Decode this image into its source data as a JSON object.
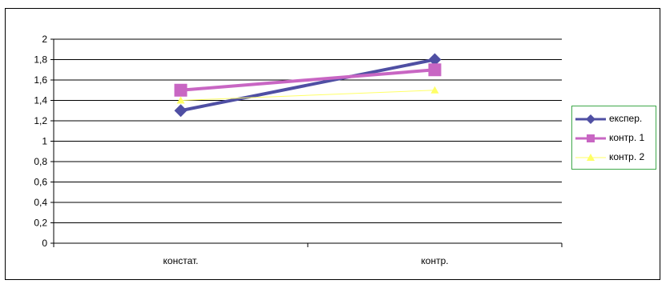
{
  "chart_data": {
    "type": "line",
    "categories": [
      "констат.",
      "контр."
    ],
    "series": [
      {
        "name": "експер.",
        "values": [
          1.3,
          1.8
        ],
        "color": "#4f4fa3",
        "marker": "diamond"
      },
      {
        "name": "контр. 1",
        "values": [
          1.5,
          1.7
        ],
        "color": "#c866c3",
        "marker": "square"
      },
      {
        "name": "контр. 2",
        "values": [
          1.4,
          1.5
        ],
        "color": "#ffff66",
        "marker": "triangle"
      }
    ],
    "ylim": [
      0,
      2
    ],
    "yticks": [
      "0",
      "0,2",
      "0,4",
      "0,6",
      "0,8",
      "1",
      "1,2",
      "1,4",
      "1,6",
      "1,8",
      "2"
    ],
    "grid": true,
    "legend_position": "right"
  }
}
